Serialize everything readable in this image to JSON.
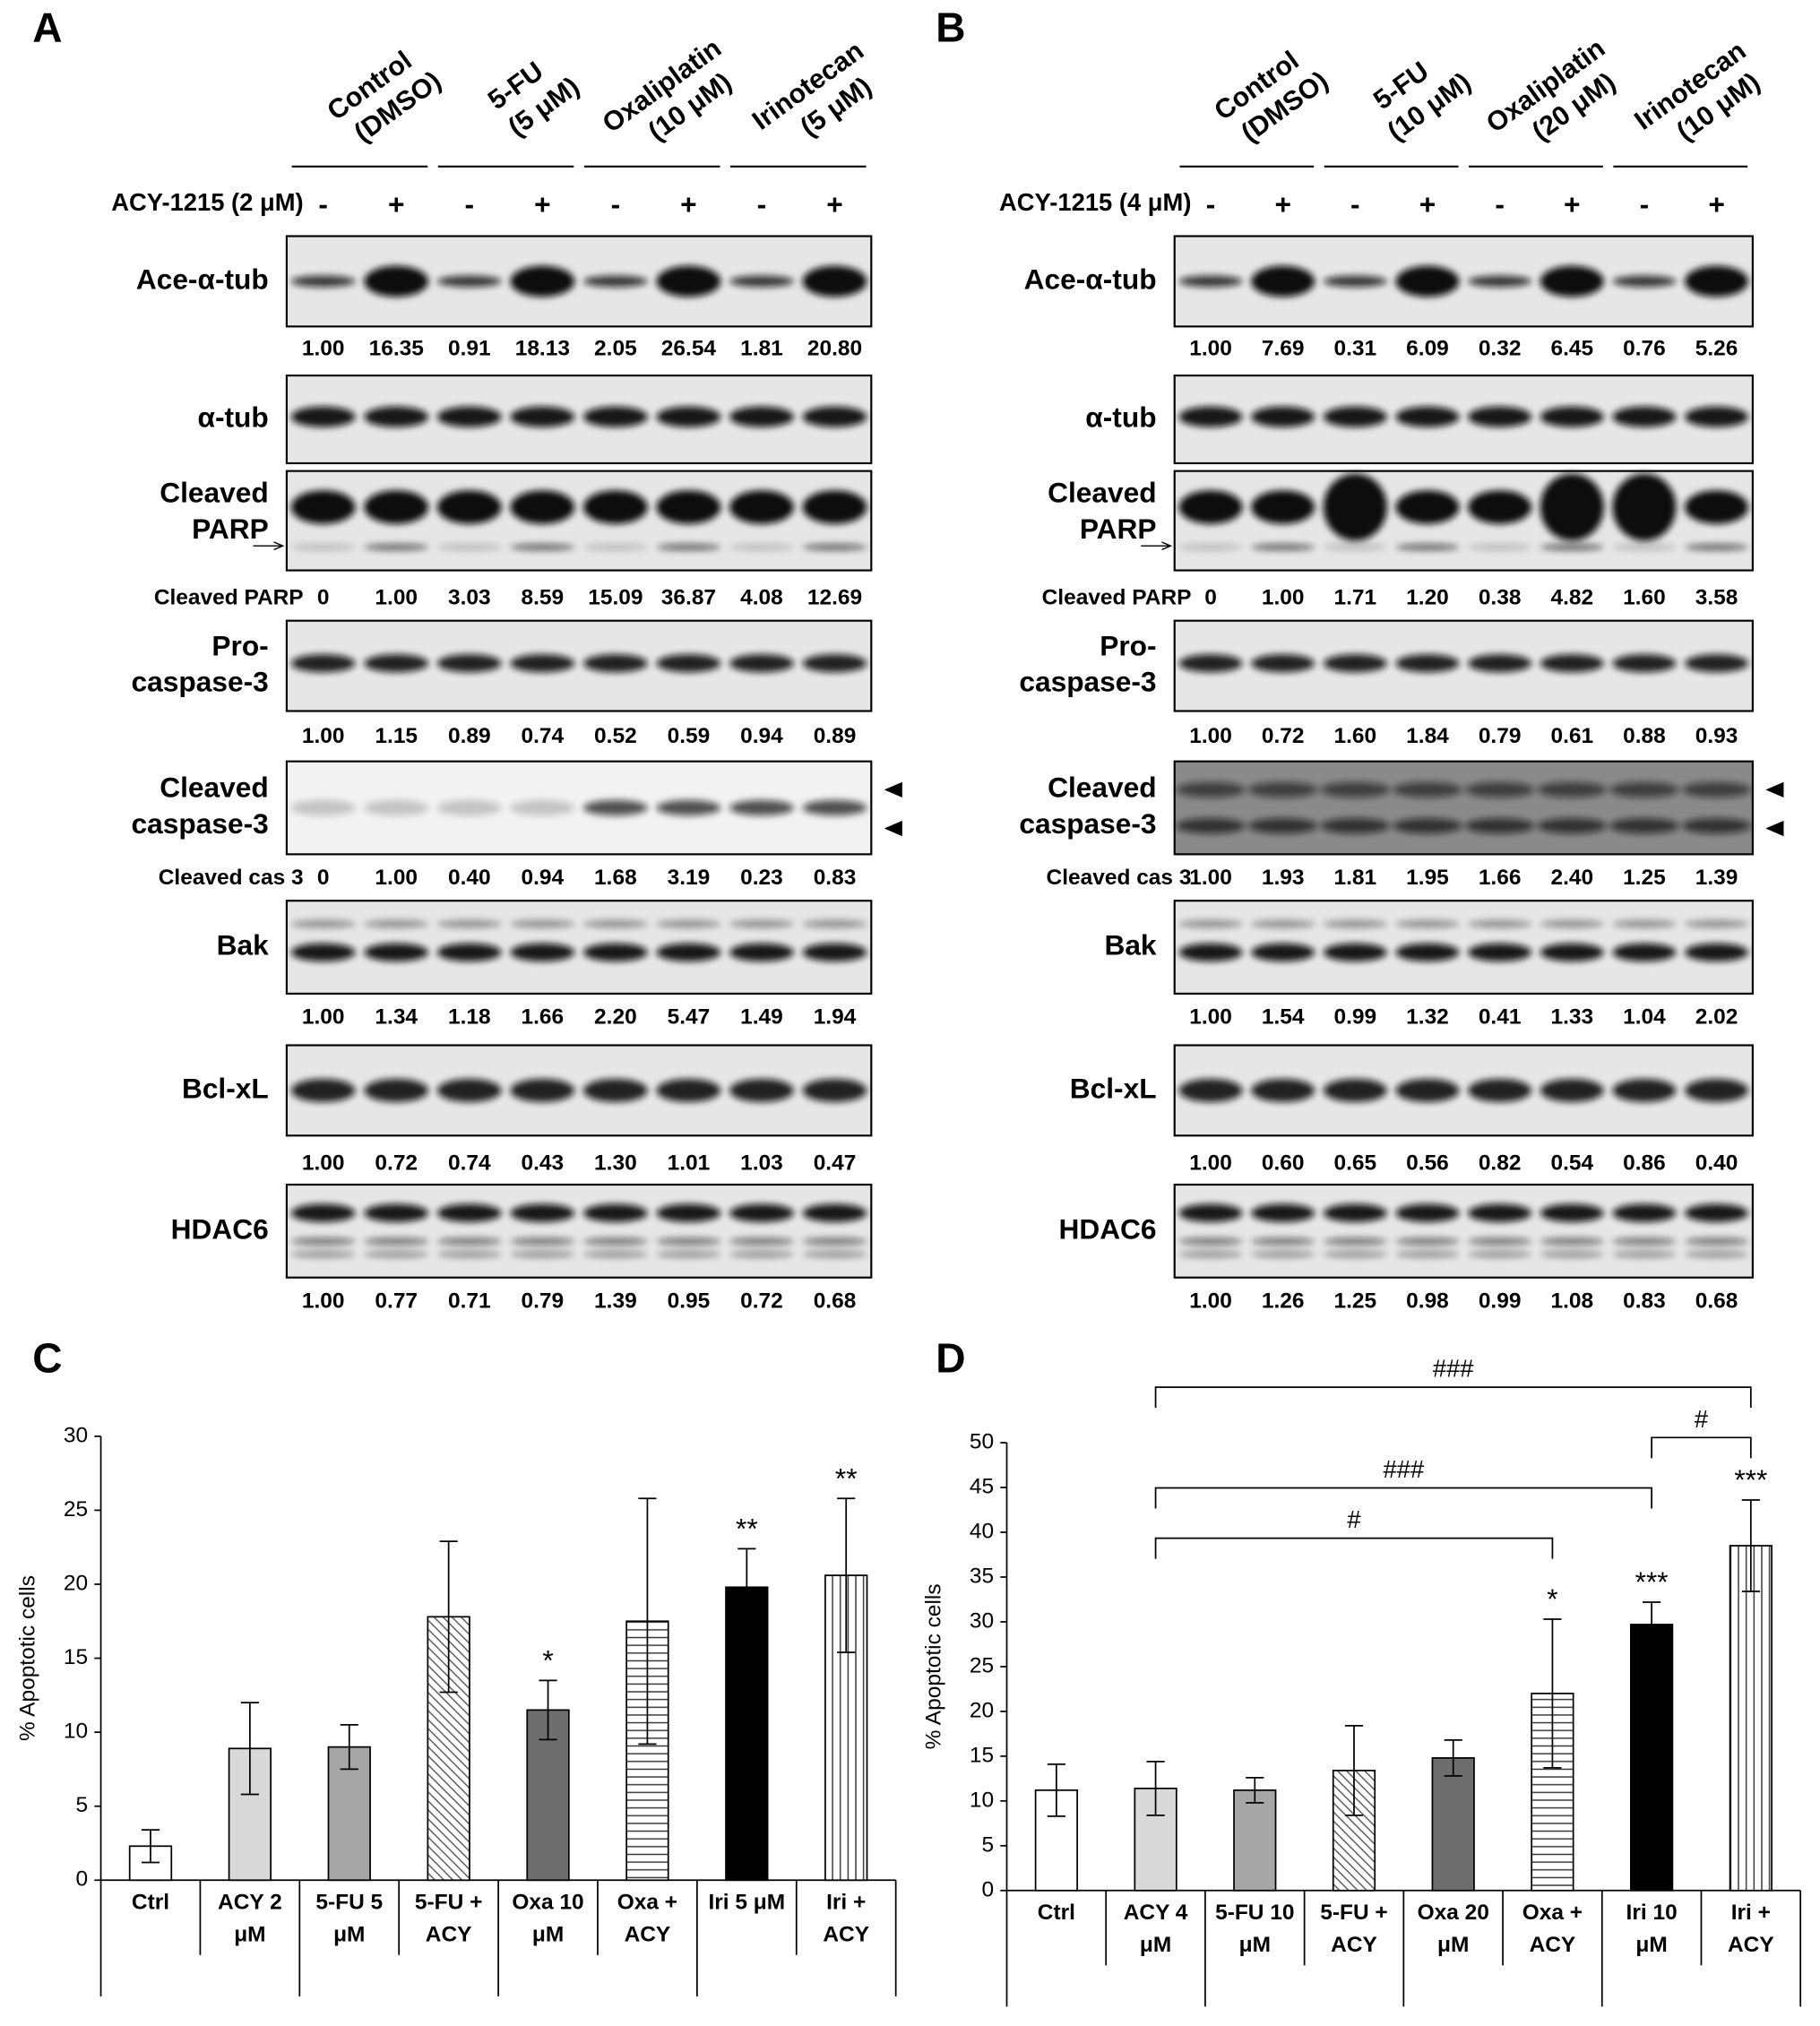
{
  "figure": {
    "panels": [
      {
        "letter": "A",
        "treatment": "ACY-1215 (2 μM)",
        "groups": [
          [
            "Control",
            "(DMSO)"
          ],
          [
            "5-FU",
            "(5 μM)"
          ],
          [
            "Oxaliplatin",
            "(10 μM)"
          ],
          [
            "Irinotecan",
            "(5 μM)"
          ]
        ],
        "signs": [
          "-",
          "+",
          "-",
          "+",
          "-",
          "+",
          "-",
          "+"
        ],
        "rows": [
          {
            "label": [
              "Ace-α-tub"
            ],
            "values": [
              "1.00",
              "16.35",
              "0.91",
              "18.13",
              "2.05",
              "26.54",
              "1.81",
              "20.80"
            ]
          },
          {
            "label": [
              "α-tub"
            ]
          },
          {
            "label": [
              "Cleaved",
              "PARP"
            ],
            "quant_label": "Cleaved PARP",
            "values": [
              "0",
              "1.00",
              "3.03",
              "8.59",
              "15.09",
              "36.87",
              "4.08",
              "12.69"
            ]
          },
          {
            "label": [
              "Pro-",
              "caspase-3"
            ],
            "values": [
              "1.00",
              "1.15",
              "0.89",
              "0.74",
              "0.52",
              "0.59",
              "0.94",
              "0.89"
            ]
          },
          {
            "label": [
              "Cleaved",
              "caspase-3"
            ],
            "quant_label": "Cleaved cas 3",
            "values": [
              "0",
              "1.00",
              "0.40",
              "0.94",
              "1.68",
              "3.19",
              "0.23",
              "0.83"
            ]
          },
          {
            "label": [
              "Bak"
            ],
            "values": [
              "1.00",
              "1.34",
              "1.18",
              "1.66",
              "2.20",
              "5.47",
              "1.49",
              "1.94"
            ]
          },
          {
            "label": [
              "Bcl-xL"
            ],
            "values": [
              "1.00",
              "0.72",
              "0.74",
              "0.43",
              "1.30",
              "1.01",
              "1.03",
              "0.47"
            ]
          },
          {
            "label": [
              "HDAC6"
            ],
            "values": [
              "1.00",
              "0.77",
              "0.71",
              "0.79",
              "1.39",
              "0.95",
              "0.72",
              "0.68"
            ]
          }
        ]
      },
      {
        "letter": "B",
        "treatment": "ACY-1215 (4 μM)",
        "groups": [
          [
            "Control",
            "(DMSO)"
          ],
          [
            "5-FU",
            "(10 μM)"
          ],
          [
            "Oxaliplatin",
            "(20 μM)"
          ],
          [
            "Irinotecan",
            "(10 μM)"
          ]
        ],
        "signs": [
          "-",
          "+",
          "-",
          "+",
          "-",
          "+",
          "-",
          "+"
        ],
        "rows": [
          {
            "label": [
              "Ace-α-tub"
            ],
            "values": [
              "1.00",
              "7.69",
              "0.31",
              "6.09",
              "0.32",
              "6.45",
              "0.76",
              "5.26"
            ]
          },
          {
            "label": [
              "α-tub"
            ]
          },
          {
            "label": [
              "Cleaved",
              "PARP"
            ],
            "quant_label": "Cleaved PARP",
            "values": [
              "0",
              "1.00",
              "1.71",
              "1.20",
              "0.38",
              "4.82",
              "1.60",
              "3.58"
            ]
          },
          {
            "label": [
              "Pro-",
              "caspase-3"
            ],
            "values": [
              "1.00",
              "0.72",
              "1.60",
              "1.84",
              "0.79",
              "0.61",
              "0.88",
              "0.93"
            ]
          },
          {
            "label": [
              "Cleaved",
              "caspase-3"
            ],
            "quant_label": "Cleaved cas 3",
            "values": [
              "1.00",
              "1.93",
              "1.81",
              "1.95",
              "1.66",
              "2.40",
              "1.25",
              "1.39"
            ]
          },
          {
            "label": [
              "Bak"
            ],
            "values": [
              "1.00",
              "1.54",
              "0.99",
              "1.32",
              "0.41",
              "1.33",
              "1.04",
              "2.02"
            ]
          },
          {
            "label": [
              "Bcl-xL"
            ],
            "values": [
              "1.00",
              "0.60",
              "0.65",
              "0.56",
              "0.82",
              "0.54",
              "0.86",
              "0.40"
            ]
          },
          {
            "label": [
              "HDAC6"
            ],
            "values": [
              "1.00",
              "1.26",
              "1.25",
              "0.98",
              "0.99",
              "1.08",
              "0.83",
              "0.68"
            ]
          }
        ]
      }
    ]
  },
  "chart_data": [
    {
      "type": "bar",
      "panel": "C",
      "ylabel": "% Apoptotic cells",
      "categories": [
        [
          "Ctrl"
        ],
        [
          "ACY 2",
          "μM"
        ],
        [
          "5-FU 5",
          "μM"
        ],
        [
          "5-FU +",
          "ACY"
        ],
        [
          "Oxa 10",
          "μM"
        ],
        [
          "Oxa +",
          "ACY"
        ],
        [
          "Iri 5 μM"
        ],
        [
          "Iri +",
          "ACY"
        ]
      ],
      "values": [
        2.3,
        8.9,
        9.0,
        17.8,
        11.5,
        17.5,
        19.8,
        20.6
      ],
      "errors": [
        1.1,
        3.1,
        1.5,
        5.1,
        2.0,
        8.3,
        2.6,
        5.2
      ],
      "colors": [
        "#ffffff",
        "#d9d9d9",
        "#a6a6a6",
        "#ffffff",
        "#6e6e6e",
        "#ffffff",
        "#000000",
        "#ffffff"
      ],
      "hatches": [
        "solid",
        "solid",
        "solid",
        "diagonal",
        "solid",
        "horizontal",
        "solid",
        "vertical"
      ],
      "ylim": [
        0,
        30
      ],
      "yticks": [
        0,
        5,
        10,
        15,
        20,
        25,
        30
      ],
      "significance": [
        {
          "category": 4,
          "label": "*"
        },
        {
          "category": 6,
          "label": "**"
        },
        {
          "category": 7,
          "label": "**"
        }
      ]
    },
    {
      "type": "bar",
      "panel": "D",
      "ylabel": "% Apoptotic cells",
      "categories": [
        [
          "Ctrl"
        ],
        [
          "ACY 4",
          "μM"
        ],
        [
          "5-FU 10",
          "μM"
        ],
        [
          "5-FU +",
          "ACY"
        ],
        [
          "Oxa 20",
          "μM"
        ],
        [
          "Oxa +",
          "ACY"
        ],
        [
          "Iri 10",
          "μM"
        ],
        [
          "Iri +",
          "ACY"
        ]
      ],
      "values": [
        11.2,
        11.4,
        11.2,
        13.4,
        14.8,
        22.0,
        29.7,
        38.5
      ],
      "errors": [
        2.9,
        3.0,
        1.4,
        5.0,
        2.0,
        8.3,
        2.5,
        5.1
      ],
      "colors": [
        "#ffffff",
        "#d9d9d9",
        "#a6a6a6",
        "#ffffff",
        "#6e6e6e",
        "#ffffff",
        "#000000",
        "#ffffff"
      ],
      "hatches": [
        "solid",
        "solid",
        "solid",
        "diagonal",
        "solid",
        "horizontal",
        "solid",
        "vertical"
      ],
      "ylim": [
        0,
        50
      ],
      "yticks": [
        0,
        5,
        10,
        15,
        20,
        25,
        30,
        35,
        40,
        45,
        50
      ],
      "significance": [
        {
          "category": 5,
          "label": "*"
        },
        {
          "category": 6,
          "label": "***"
        },
        {
          "category": 7,
          "label": "***"
        }
      ],
      "comparisons": [
        {
          "between": [
            1,
            7
          ],
          "label": "###"
        },
        {
          "between": [
            6,
            7
          ],
          "label": "#"
        },
        {
          "between": [
            1,
            6
          ],
          "label": "###"
        },
        {
          "between": [
            1,
            5
          ],
          "label": "#"
        }
      ]
    }
  ]
}
